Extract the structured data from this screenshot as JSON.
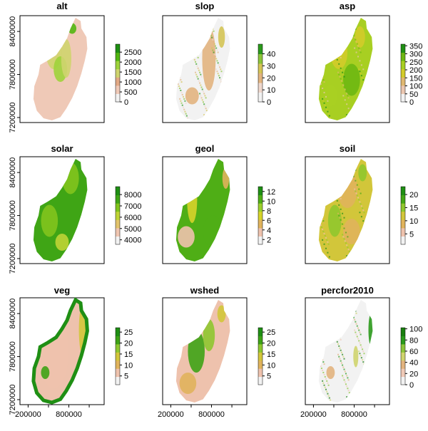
{
  "figure": {
    "y_ticks": [
      "7200000",
      "7800000",
      "8400000"
    ],
    "x_ticks": [
      "200000",
      "800000"
    ]
  },
  "chart_data": [
    {
      "type": "heatmap",
      "title": "alt",
      "legend_ticks": [
        0,
        500,
        1000,
        1500,
        2000,
        2500
      ],
      "legend_max": 2900,
      "colors": [
        "#f2f2f2",
        "#efc9b7",
        "#e2a985",
        "#cfd46e",
        "#9ed33b",
        "#52b611",
        "#1e8f12"
      ]
    },
    {
      "type": "heatmap",
      "title": "slop",
      "legend_ticks": [
        0,
        10,
        20,
        30,
        40
      ],
      "legend_max": 48,
      "colors": [
        "#f2f2f2",
        "#efd7cc",
        "#e2b47f",
        "#d4c455",
        "#8cc43a",
        "#2b9a1c"
      ]
    },
    {
      "type": "heatmap",
      "title": "asp",
      "legend_ticks": [
        0,
        50,
        100,
        150,
        200,
        250,
        300,
        350
      ],
      "legend_max": 360,
      "colors": [
        "#f2f2f2",
        "#ebc6b0",
        "#e0b870",
        "#d2cb2a",
        "#a8cf22",
        "#6db712",
        "#1f8f14"
      ]
    },
    {
      "type": "heatmap",
      "title": "solar",
      "legend_ticks": [
        4000,
        5000,
        6000,
        7000,
        8000
      ],
      "legend_min": 3600,
      "legend_max": 8700,
      "colors": [
        "#f2f2f2",
        "#efc5b0",
        "#e2c36b",
        "#bfd435",
        "#82c41d",
        "#3fa515",
        "#1f8f14"
      ]
    },
    {
      "type": "heatmap",
      "title": "geol",
      "legend_ticks": [
        2,
        4,
        6,
        8,
        10,
        12
      ],
      "legend_min": 1,
      "legend_max": 13,
      "colors": [
        "#f2f2f2",
        "#eec2ad",
        "#e0b35c",
        "#d6d32a",
        "#9dcf2d",
        "#4fae16",
        "#1f8f14"
      ]
    },
    {
      "type": "heatmap",
      "title": "soil",
      "legend_ticks": [
        5,
        10,
        15,
        20
      ],
      "legend_min": 1,
      "legend_max": 23,
      "colors": [
        "#f2f2f2",
        "#eec2ad",
        "#e0b35c",
        "#d2c63a",
        "#90c72e",
        "#43a616",
        "#1f8f14"
      ]
    },
    {
      "type": "heatmap",
      "title": "veg",
      "legend_ticks": [
        5,
        10,
        15,
        20,
        25
      ],
      "legend_min": 1,
      "legend_max": 27,
      "colors": [
        "#f2f2f2",
        "#eec2ad",
        "#e0b35c",
        "#d2c63a",
        "#8ec730",
        "#3ea316",
        "#1f8f14"
      ]
    },
    {
      "type": "heatmap",
      "title": "wshed",
      "legend_ticks": [
        5,
        10,
        15,
        20,
        25
      ],
      "legend_min": 1,
      "legend_max": 27,
      "colors": [
        "#f2f2f2",
        "#eec2ad",
        "#e0b35c",
        "#d2c63a",
        "#8ec730",
        "#3ea316",
        "#1f8f14"
      ]
    },
    {
      "type": "heatmap",
      "title": "percfor2010",
      "legend_ticks": [
        0,
        20,
        40,
        60,
        80,
        100
      ],
      "legend_max": 102,
      "colors": [
        "#f2f2f2",
        "#efc9b7",
        "#e2b47f",
        "#cfd46e",
        "#8cc43a",
        "#2b9a1c",
        "#1a7f10"
      ]
    }
  ]
}
